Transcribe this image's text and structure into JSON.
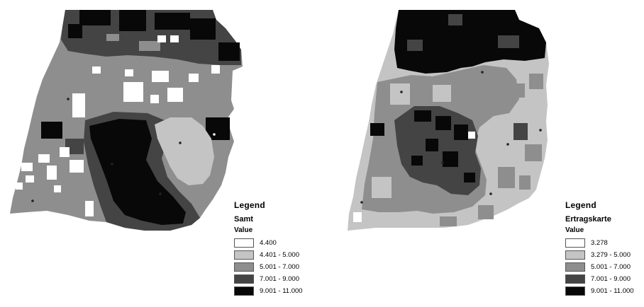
{
  "maps": [
    {
      "legend": {
        "title": "Legend",
        "layer": "Samt",
        "field": "Value",
        "classes": [
          {
            "label": "4.400",
            "color": "#ffffff"
          },
          {
            "label": "4.401 - 5.000",
            "color": "#c4c4c4"
          },
          {
            "label": "5.001 - 7.000",
            "color": "#8e8e8e"
          },
          {
            "label": "7.001 - 9.000",
            "color": "#444444"
          },
          {
            "label": "9.001 - 11.000",
            "color": "#080808"
          }
        ]
      }
    },
    {
      "legend": {
        "title": "Legend",
        "layer": "Ertragskarte",
        "field": "Value",
        "classes": [
          {
            "label": "3.278",
            "color": "#ffffff"
          },
          {
            "label": "3.279 - 5.000",
            "color": "#c4c4c4"
          },
          {
            "label": "5.001 - 7.000",
            "color": "#8e8e8e"
          },
          {
            "label": "7.001 - 9.000",
            "color": "#444444"
          },
          {
            "label": "9.001 - 11.000",
            "color": "#080808"
          }
        ]
      }
    }
  ]
}
